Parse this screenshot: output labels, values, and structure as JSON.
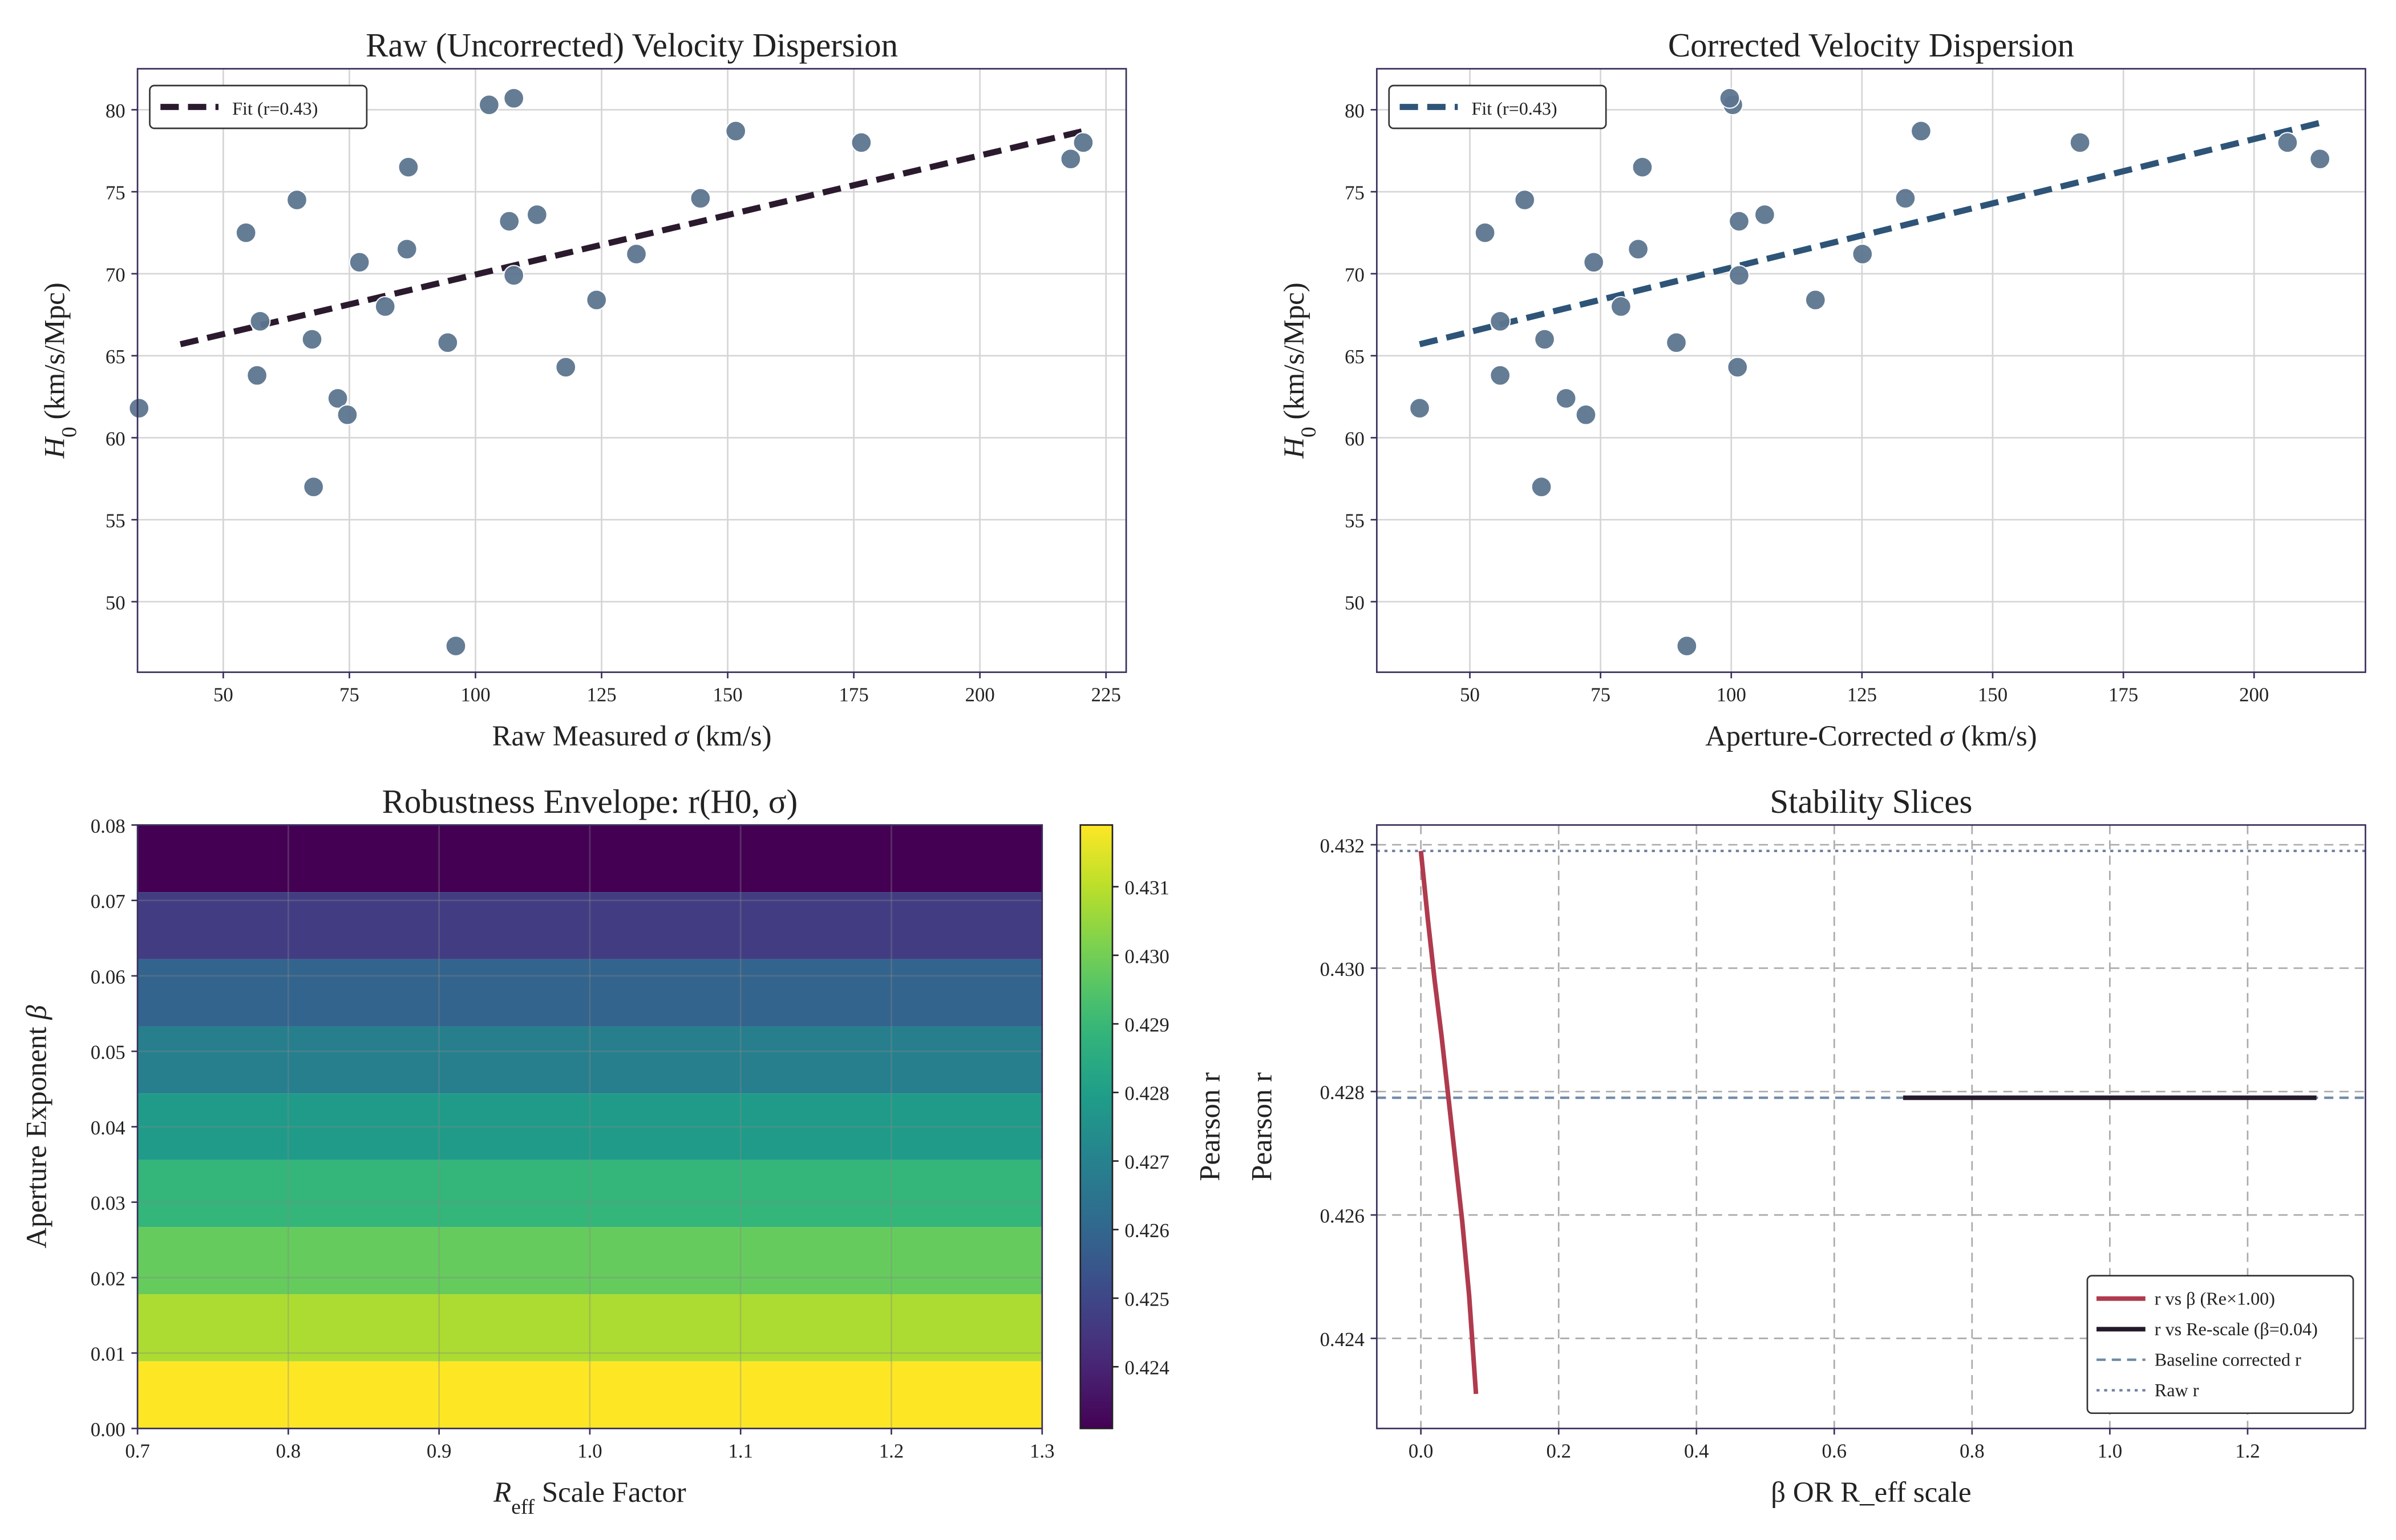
{
  "chart_data": [
    {
      "type": "scatter",
      "title": "Raw (Uncorrected) Velocity Dispersion",
      "xlabel": [
        {
          "text": "Raw Measured "
        },
        {
          "text": "σ",
          "italic": true
        },
        {
          "text": " (km/s)"
        }
      ],
      "ylabel": [
        {
          "text": "H",
          "italic": true
        },
        {
          "text": "0",
          "sub": true
        },
        {
          "text": " (km/s/Mpc)"
        }
      ],
      "x": [
        33.3,
        54.5,
        57.3,
        56.7,
        64.6,
        67.6,
        67.9,
        72.7,
        74.6,
        77.0,
        82.1,
        86.7,
        86.4,
        94.5,
        96.1,
        102.7,
        106.7,
        107.6,
        107.6,
        112.2,
        117.9,
        124.0,
        131.9,
        144.6,
        151.6,
        176.5,
        218.0,
        220.5
      ],
      "values": [
        61.8,
        72.5,
        67.1,
        63.8,
        74.5,
        66.0,
        57.0,
        62.4,
        61.4,
        70.7,
        68.0,
        76.5,
        71.5,
        65.8,
        47.3,
        80.3,
        73.2,
        80.7,
        69.9,
        73.6,
        64.3,
        68.4,
        71.2,
        74.6,
        78.7,
        78.0,
        77.0,
        78.0
      ],
      "color": "#5d7590",
      "fit": {
        "name": "Fit (r=0.43)",
        "color": "#2b1a2e",
        "x": [
          41.5,
          220.5
        ],
        "values": [
          65.7,
          78.7
        ]
      },
      "xlim": [
        33,
        229
      ],
      "ylim": [
        45.7,
        82.5
      ],
      "xticks": [
        50,
        75,
        100,
        125,
        150,
        175,
        200,
        225
      ],
      "yticks": [
        50,
        55,
        60,
        65,
        70,
        75,
        80
      ],
      "grid": true,
      "legend": "upper left"
    },
    {
      "type": "scatter",
      "title": "Corrected Velocity Dispersion",
      "xlabel": [
        {
          "text": "Aperture-Corrected "
        },
        {
          "text": "σ",
          "italic": true
        },
        {
          "text": " (km/s)"
        }
      ],
      "ylabel": [
        {
          "text": "H",
          "italic": true
        },
        {
          "text": "0",
          "sub": true
        },
        {
          "text": " (km/s/Mpc)"
        }
      ],
      "x": [
        40.4,
        52.9,
        55.8,
        55.8,
        60.5,
        64.3,
        63.7,
        68.4,
        72.2,
        73.7,
        78.9,
        83.0,
        82.2,
        89.5,
        91.5,
        100.3,
        101.5,
        99.7,
        101.5,
        106.4,
        101.2,
        116.1,
        125.1,
        133.3,
        136.3,
        166.7,
        212.6,
        206.4
      ],
      "values": [
        61.8,
        72.5,
        67.1,
        63.8,
        74.5,
        66.0,
        57.0,
        62.4,
        61.4,
        70.7,
        68.0,
        76.5,
        71.5,
        65.8,
        47.3,
        80.3,
        73.2,
        80.7,
        69.9,
        73.6,
        64.3,
        68.4,
        71.2,
        74.6,
        78.7,
        78.0,
        77.0,
        78.0
      ],
      "color": "#5d7590",
      "fit": {
        "name": "Fit (r=0.43)",
        "color": "#2e5478",
        "x": [
          40.4,
          212.6
        ],
        "values": [
          65.7,
          79.2
        ]
      },
      "xlim": [
        32.2,
        221.3
      ],
      "ylim": [
        45.7,
        82.5
      ],
      "xticks": [
        50,
        75,
        100,
        125,
        150,
        175,
        200
      ],
      "yticks": [
        50,
        55,
        60,
        65,
        70,
        75,
        80
      ],
      "grid": true,
      "legend": "upper left"
    },
    {
      "type": "heatmap",
      "title": "Robustness Envelope: r(H0, σ)",
      "xlabel": [
        {
          "text": "R",
          "italic": true
        },
        {
          "text": "eff",
          "sub": true
        },
        {
          "text": " Scale Factor"
        }
      ],
      "ylabel": [
        {
          "text": "Aperture Exponent "
        },
        {
          "text": "β",
          "italic": true
        }
      ],
      "colorbar_label": "Pearson r",
      "x_edges": [
        0.7,
        1.3
      ],
      "y_edges": [
        0,
        0.0089,
        0.0178,
        0.0267,
        0.0356,
        0.0444,
        0.0533,
        0.0622,
        0.0711,
        0.08
      ],
      "values": [
        0.4319,
        0.4308,
        0.4298,
        0.4289,
        0.4279,
        0.4269,
        0.4259,
        0.4247,
        0.4231
      ],
      "cmap": "viridis",
      "clim": [
        0.4231,
        0.4319
      ],
      "xlim": [
        0.7,
        1.3
      ],
      "ylim": [
        0,
        0.08
      ],
      "xticks": [
        0.7,
        0.8,
        0.9,
        {
          "value": 1.0,
          "label": "1.0"
        },
        1.1,
        1.2,
        1.3
      ],
      "yticks": [
        {
          "value": 0,
          "label": "0.00"
        },
        {
          "value": 0.01,
          "label": "0.01"
        },
        {
          "value": 0.02,
          "label": "0.02"
        },
        {
          "value": 0.03,
          "label": "0.03"
        },
        {
          "value": 0.04,
          "label": "0.04"
        },
        {
          "value": 0.05,
          "label": "0.05"
        },
        {
          "value": 0.06,
          "label": "0.06"
        },
        {
          "value": 0.07,
          "label": "0.07"
        },
        {
          "value": 0.08,
          "label": "0.08"
        }
      ],
      "cticks": [
        0.424,
        0.425,
        0.426,
        0.427,
        0.428,
        0.429,
        {
          "value": 0.43,
          "label": "0.430"
        },
        0.431
      ],
      "grid": true
    },
    {
      "type": "line",
      "title": "Stability Slices",
      "xlabel": [
        {
          "text": "β  OR  R_eff scale"
        }
      ],
      "ylabel": [
        {
          "text": "Pearson r"
        }
      ],
      "series": [
        {
          "name": "r vs β (Re×1.00)",
          "color": "#b03a4e",
          "style": "solid",
          "x": [
            0,
            0.01,
            0.02,
            0.03,
            0.04,
            0.05,
            0.06,
            0.07,
            0.08
          ],
          "values": [
            0.4319,
            0.4308,
            0.4298,
            0.4289,
            0.4279,
            0.4269,
            0.4259,
            0.4247,
            0.4231
          ]
        },
        {
          "name": "r vs Re-scale (β=0.04)",
          "color": "#231a2b",
          "style": "solid",
          "x": [
            0.7,
            0.8,
            0.9,
            1.0,
            1.1,
            1.2,
            1.3
          ],
          "values": [
            0.4279,
            0.4279,
            0.4279,
            0.4279,
            0.4279,
            0.4279,
            0.4279
          ]
        }
      ],
      "hlines": [
        {
          "name": "Baseline corrected r",
          "color": "#6f8aa8",
          "style": "dashed",
          "value": 0.4279
        },
        {
          "name": "Raw r",
          "color": "#7080a0",
          "style": "dotted",
          "value": 0.4319
        }
      ],
      "xlim": [
        -0.064,
        1.371
      ],
      "ylim": [
        0.42254,
        0.43232
      ],
      "xticks": [
        {
          "value": 0,
          "label": "0.0"
        },
        {
          "value": 0.2,
          "label": "0.2"
        },
        {
          "value": 0.4,
          "label": "0.4"
        },
        {
          "value": 0.6,
          "label": "0.6"
        },
        {
          "value": 0.8,
          "label": "0.8"
        },
        {
          "value": 1.0,
          "label": "1.0"
        },
        {
          "value": 1.2,
          "label": "1.2"
        }
      ],
      "yticks": [
        0.424,
        0.426,
        0.428,
        {
          "value": 0.43,
          "label": "0.430"
        },
        0.432
      ],
      "grid": true,
      "grid_style": "dashed",
      "legend": "lower right"
    }
  ]
}
